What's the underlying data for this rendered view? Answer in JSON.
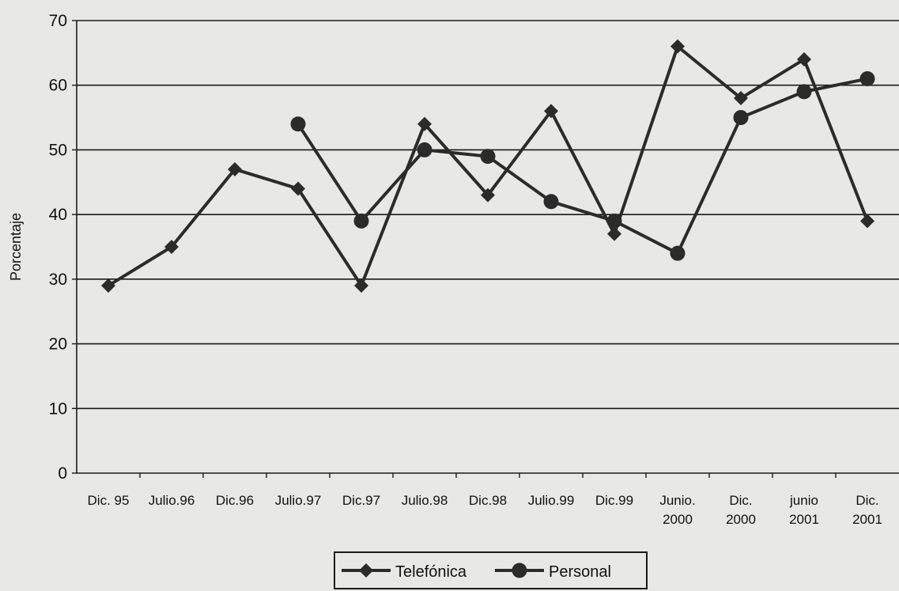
{
  "chart_data": {
    "type": "line",
    "title": "",
    "ylabel": "Porcentaje",
    "xlabel": "",
    "ylim": [
      0,
      70
    ],
    "yticks": [
      0,
      10,
      20,
      30,
      40,
      50,
      60,
      70
    ],
    "grid": true,
    "legend_position": "bottom-center",
    "categories": [
      [
        "Dic. 95"
      ],
      [
        "Julio.96"
      ],
      [
        "Dic.96"
      ],
      [
        "Julio.97"
      ],
      [
        "Dic.97"
      ],
      [
        "Julio.98"
      ],
      [
        "Dic.98"
      ],
      [
        "Julio.99"
      ],
      [
        "Dic.99"
      ],
      [
        "Junio.",
        "2000"
      ],
      [
        "Dic.",
        "2000"
      ],
      [
        "junio",
        "2001"
      ],
      [
        "Dic.",
        "2001"
      ]
    ],
    "series": [
      {
        "name": "Telefónica",
        "marker": "diamond",
        "color": "#2b2b2b",
        "values": [
          29,
          35,
          47,
          44,
          29,
          54,
          43,
          56,
          37,
          66,
          58,
          64,
          39
        ]
      },
      {
        "name": "Personal",
        "marker": "circle",
        "color": "#2b2b2b",
        "values": [
          null,
          null,
          null,
          54,
          39,
          50,
          49,
          42,
          39,
          34,
          55,
          59,
          61
        ]
      }
    ]
  }
}
